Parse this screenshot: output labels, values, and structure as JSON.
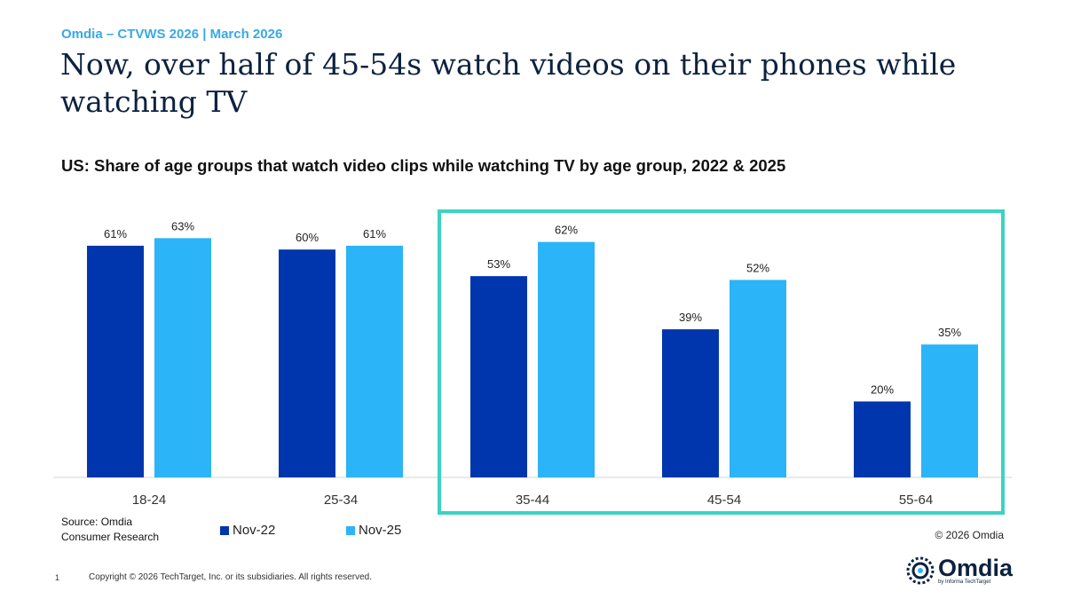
{
  "header": {
    "kicker": "Omdia – CTVWS 2026 | March 2026",
    "title": "Now, over half of 45-54s watch videos on their phones while watching TV"
  },
  "chart_data": {
    "type": "bar",
    "title": "US: Share of age groups that watch video clips while watching TV by age group, 2022 & 2025",
    "categories": [
      "18-24",
      "25-34",
      "35-44",
      "45-54",
      "55-64"
    ],
    "series": [
      {
        "name": "Nov-22",
        "values": [
          61,
          60,
          53,
          39,
          20
        ],
        "color": "#0036ad"
      },
      {
        "name": "Nov-25",
        "values": [
          63,
          61,
          62,
          52,
          35
        ],
        "color": "#2bb4f8"
      }
    ],
    "value_format": "percent",
    "ylim": [
      0,
      100
    ],
    "grid": false,
    "legend": "bottom-left",
    "highlight": {
      "categories": [
        "35-44",
        "45-54",
        "55-64"
      ],
      "color": "#3cd3c3"
    }
  },
  "footer": {
    "source_line1": "Source: Omdia",
    "source_line2": "Consumer Research",
    "copyright_omdia": "© 2026 Omdia",
    "page_number": "1",
    "copyright": "Copyright © 2026 TechTarget, Inc. or its subsidiaries. All rights reserved.",
    "logo_text": "Omdia",
    "logo_sub": "by Informa TechTarget"
  }
}
